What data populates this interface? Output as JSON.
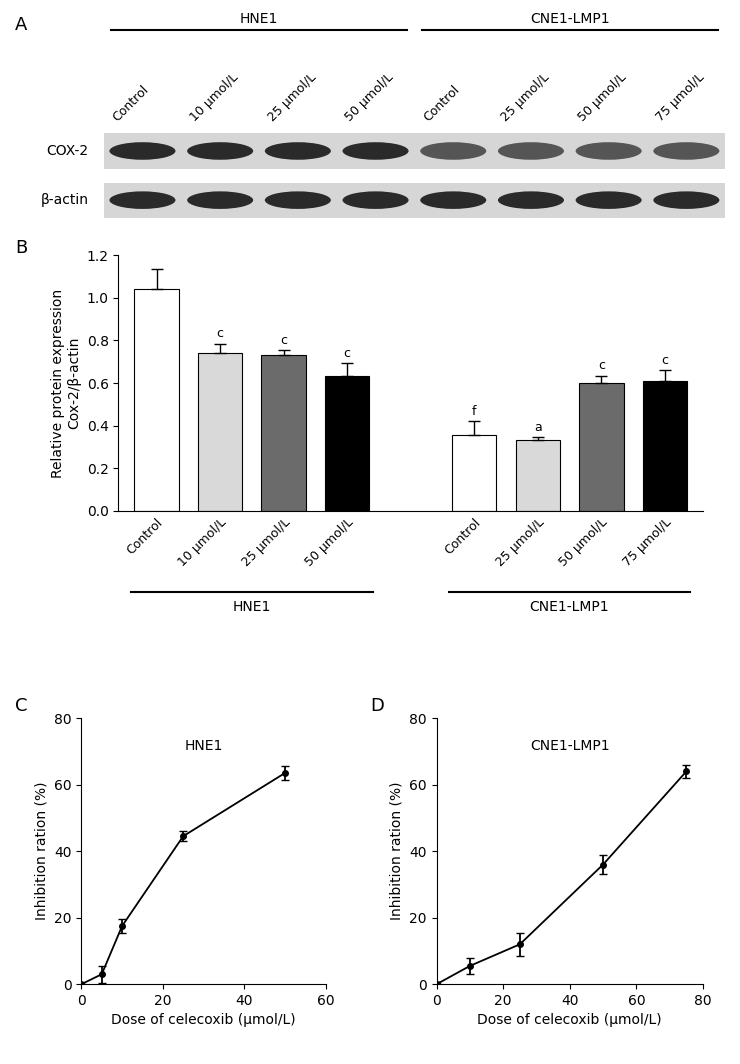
{
  "blot": {
    "panel": "A",
    "groups": [
      {
        "name": "HNE1",
        "lanes": [
          "Control",
          "10 μmol/L",
          "25 μmol/L",
          "50 μmol/L"
        ]
      },
      {
        "name": "CNE1-LMP1",
        "lanes": [
          "Control",
          "25 μmol/L",
          "50 μmol/L",
          "75 μmol/L"
        ]
      }
    ],
    "rows": [
      "COX-2",
      "β-actin"
    ]
  },
  "chart_data": [
    {
      "panel": "B",
      "type": "bar",
      "y_label": "Relative protein expression\nCox-2/β-actin",
      "categories": [
        "Control",
        "10 μmol/L",
        "25 μmol/L",
        "50 μmol/L",
        null,
        "Control",
        "25 μmol/L",
        "50 μmol/L",
        "75 μmol/L"
      ],
      "values": [
        1.04,
        0.74,
        0.73,
        0.635,
        null,
        0.355,
        0.33,
        0.6,
        0.61
      ],
      "errors": [
        0.095,
        0.045,
        0.025,
        0.06,
        null,
        0.065,
        0.015,
        0.035,
        0.05
      ],
      "significance": [
        null,
        "c",
        "c",
        "c",
        null,
        "f",
        "a",
        "c",
        "c"
      ],
      "colors": [
        "#ffffff",
        "#d9d9d9",
        "#6b6b6b",
        "#000000",
        null,
        "#ffffff",
        "#d9d9d9",
        "#6b6b6b",
        "#000000"
      ],
      "groups": [
        {
          "name": "HNE1",
          "from": 0,
          "to": 3
        },
        {
          "name": "CNE1-LMP1",
          "from": 5,
          "to": 8
        }
      ],
      "ylim": [
        0,
        1.2
      ],
      "yticks": [
        {
          "value": 0,
          "label": "0.0"
        },
        {
          "value": 0.2,
          "label": "0.2"
        },
        {
          "value": 0.4,
          "label": "0.4"
        },
        {
          "value": 0.6,
          "label": "0.6"
        },
        {
          "value": 0.8,
          "label": "0.8"
        },
        {
          "value": 1.0,
          "label": "1.0"
        },
        {
          "value": 1.2,
          "label": "1.2"
        }
      ]
    },
    {
      "panel": "C",
      "type": "line",
      "title": "HNE1",
      "x_label": "Dose of celecoxib (μmol/L)",
      "y_label": "Inhibition ration (%)",
      "x": [
        0,
        5,
        10,
        25,
        50
      ],
      "values": [
        0,
        3,
        17.5,
        44.5,
        63.5
      ],
      "errors": [
        0,
        2.5,
        2,
        1.5,
        2
      ],
      "color": "#000000",
      "marker": "o",
      "xlim": [
        0,
        60
      ],
      "xticks": [
        0,
        20,
        40,
        60
      ],
      "ylim": [
        0,
        80
      ],
      "yticks": [
        0,
        20,
        40,
        60,
        80
      ]
    },
    {
      "panel": "D",
      "type": "line",
      "title": "CNE1-LMP1",
      "x_label": "Dose of celecoxib (μmol/L)",
      "y_label": "Inhibition ration (%)",
      "x": [
        0,
        10,
        25,
        50,
        75
      ],
      "values": [
        0,
        5.5,
        12,
        36,
        64
      ],
      "errors": [
        0,
        2.5,
        3.5,
        3,
        2
      ],
      "color": "#000000",
      "marker": "o",
      "xlim": [
        0,
        80
      ],
      "xticks": [
        0,
        20,
        40,
        60,
        80
      ],
      "ylim": [
        0,
        80
      ],
      "yticks": [
        0,
        20,
        40,
        60,
        80
      ]
    }
  ]
}
